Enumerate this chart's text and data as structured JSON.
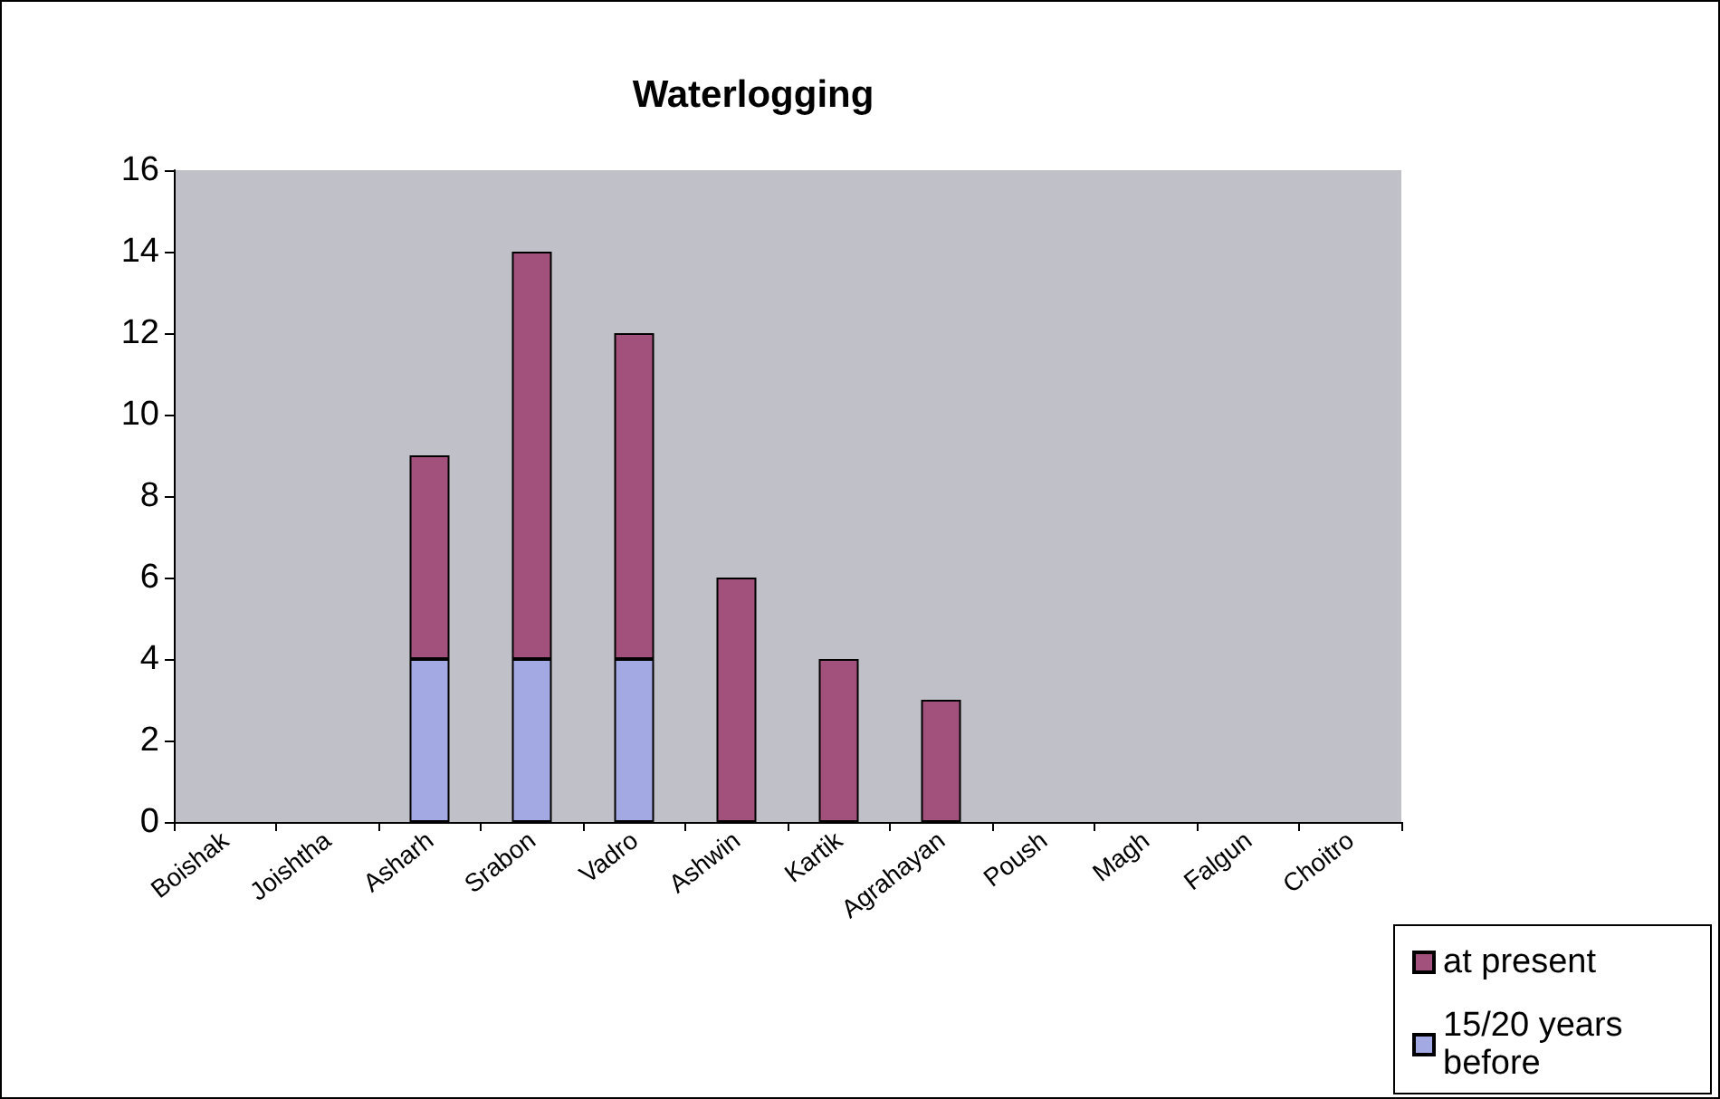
{
  "chart_data": {
    "type": "bar",
    "title": "Waterlogging",
    "stacked": true,
    "categories": [
      "Boishak",
      "Joishtha",
      "Asharh",
      "Srabon",
      "Vadro",
      "Ashwin",
      "Kartik",
      "Agrahayan",
      "Poush",
      "Magh",
      "Falgun",
      "Choitro"
    ],
    "series": [
      {
        "name": "15/20 years before",
        "color": "#a3a9e2",
        "values": [
          null,
          null,
          4,
          4,
          4,
          null,
          null,
          null,
          null,
          null,
          null,
          null
        ]
      },
      {
        "name": "at present",
        "color": "#a2507c",
        "values": [
          null,
          null,
          5,
          10,
          8,
          6,
          4,
          3,
          null,
          null,
          null,
          null
        ]
      }
    ],
    "ylim": [
      0,
      16
    ],
    "yticks": [
      0,
      2,
      4,
      6,
      8,
      10,
      12,
      14,
      16
    ],
    "grid": false,
    "legend": "bottom right"
  }
}
